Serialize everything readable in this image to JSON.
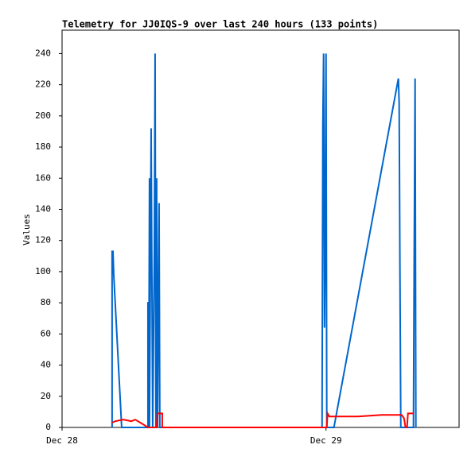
{
  "chart_data": {
    "type": "line",
    "title": "Telemetry for JJ0IQS-9 over last 240 hours (133 points)",
    "y_label": "Values",
    "xlim": [
      0,
      36.1
    ],
    "ylim": [
      0,
      255
    ],
    "xticks": [
      {
        "value": 0,
        "label": "Dec 28"
      },
      {
        "value": 24,
        "label": "Dec 29"
      }
    ],
    "yticks": [
      0,
      20,
      40,
      60,
      80,
      100,
      120,
      140,
      160,
      180,
      200,
      220,
      240
    ],
    "series": [
      {
        "color": "#0066cc",
        "x": [
          4.55,
          4.55,
          4.63,
          4.7,
          5.42,
          7.81,
          7.81,
          7.88,
          7.88,
          7.95,
          7.95,
          8.1,
          8.17,
          8.24,
          8.39,
          8.46,
          8.53,
          8.6,
          8.68,
          8.82,
          8.89,
          23.64,
          23.71,
          23.78,
          23.86,
          23.93,
          24.0,
          24.07,
          24.72,
          30.58,
          30.65,
          30.72,
          30.8,
          31.95,
          32.02,
          32.1,
          32.17
        ],
        "values": [
          0,
          113,
          113,
          98,
          0,
          0,
          80,
          80,
          0,
          160,
          0,
          192,
          96,
          0,
          112,
          240,
          0,
          160,
          0,
          144,
          0,
          0,
          192,
          240,
          64,
          120,
          240,
          0,
          0,
          224,
          208,
          104,
          0,
          0,
          112,
          224,
          0
        ]
      },
      {
        "color": "#ff0000",
        "x": [
          4.55,
          4.84,
          5.57,
          6.29,
          6.65,
          7.37,
          7.81,
          8.6,
          8.68,
          9.11,
          9.11,
          24.07,
          24.14,
          24.29,
          26.89,
          29.06,
          30.87,
          31.09,
          31.23,
          31.37,
          31.45,
          31.95
        ],
        "values": [
          3,
          4,
          5,
          4,
          5,
          2,
          0,
          0,
          9,
          9,
          0,
          0,
          9,
          7,
          7,
          8,
          8,
          6,
          0,
          0,
          9,
          9
        ]
      }
    ]
  }
}
